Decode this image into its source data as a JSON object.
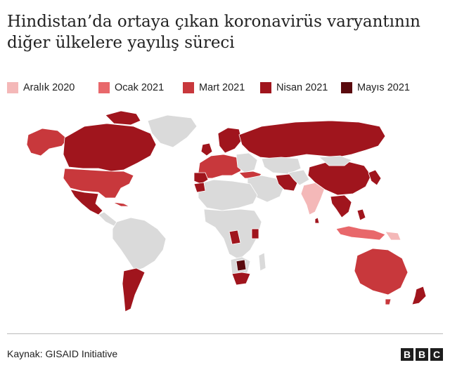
{
  "title_lines": [
    "Hindistan’da ortaya çıkan koronavirüs varyantının",
    "diğer ülkelere yayılış süreci"
  ],
  "legend": [
    {
      "label": "Aralık 2020",
      "color": "#f4b8b8"
    },
    {
      "label": "Ocak 2021",
      "color": "#e8686b"
    },
    {
      "label": "Mart 2021",
      "color": "#c8383c"
    },
    {
      "label": "Nisan 2021",
      "color": "#a0151d"
    },
    {
      "label": "Mayıs 2021",
      "color": "#5a0a0e"
    }
  ],
  "colors": {
    "no_data": "#dadada",
    "ocean": "#ffffff",
    "border": "#ffffff"
  },
  "source": "Kaynak: GISAID Initiative",
  "logo": [
    "B",
    "B",
    "C"
  ]
}
